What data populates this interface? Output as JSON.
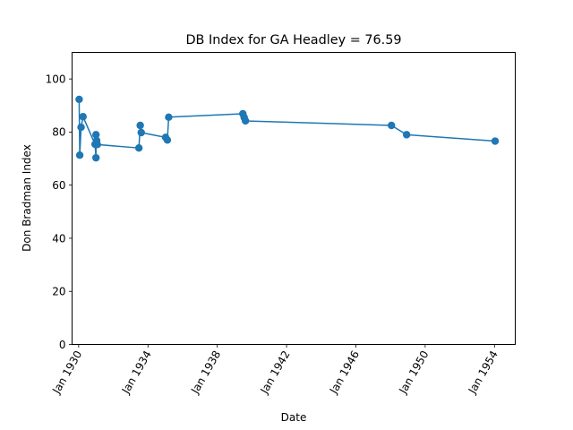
{
  "chart_data": {
    "type": "line",
    "title": "DB Index for GA Headley = 76.59",
    "xlabel": "Date",
    "ylabel": "Don Bradman Index",
    "ylim": [
      0,
      110
    ],
    "xlim": [
      "1929-08-15",
      "1955-03-15"
    ],
    "y_ticks": [
      0,
      20,
      40,
      60,
      80,
      100
    ],
    "x_ticks": [
      {
        "date": "1930-01-01",
        "label": "Jan 1930"
      },
      {
        "date": "1934-01-01",
        "label": "Jan 1934"
      },
      {
        "date": "1938-01-01",
        "label": "Jan 1938"
      },
      {
        "date": "1942-01-01",
        "label": "Jan 1942"
      },
      {
        "date": "1946-01-01",
        "label": "Jan 1946"
      },
      {
        "date": "1950-01-01",
        "label": "Jan 1950"
      },
      {
        "date": "1954-01-01",
        "label": "Jan 1954"
      }
    ],
    "grid": false,
    "legend": "none",
    "series": [
      {
        "color": "#1f77b4",
        "marker": "circle",
        "points": [
          {
            "x": "1930-01-11",
            "y": 92.3
          },
          {
            "x": "1930-01-24",
            "y": 71.3
          },
          {
            "x": "1930-02-21",
            "y": 81.8
          },
          {
            "x": "1930-04-03",
            "y": 85.8
          },
          {
            "x": "1930-12-12",
            "y": 75.4
          },
          {
            "x": "1931-01-01",
            "y": 70.3
          },
          {
            "x": "1931-01-01",
            "y": 79.0
          },
          {
            "x": "1931-01-16",
            "y": 76.8
          },
          {
            "x": "1931-01-30",
            "y": 75.3
          },
          {
            "x": "1933-06-24",
            "y": 74.0
          },
          {
            "x": "1933-07-22",
            "y": 82.5
          },
          {
            "x": "1933-08-12",
            "y": 79.8
          },
          {
            "x": "1935-01-08",
            "y": 78.0
          },
          {
            "x": "1935-02-14",
            "y": 77.0
          },
          {
            "x": "1935-03-14",
            "y": 85.6
          },
          {
            "x": "1939-06-24",
            "y": 86.9
          },
          {
            "x": "1939-07-22",
            "y": 85.5
          },
          {
            "x": "1939-08-19",
            "y": 84.2
          },
          {
            "x": "1948-01-21",
            "y": 82.5
          },
          {
            "x": "1948-12-06",
            "y": 79.0
          },
          {
            "x": "1954-01-15",
            "y": 76.59
          }
        ]
      }
    ]
  }
}
